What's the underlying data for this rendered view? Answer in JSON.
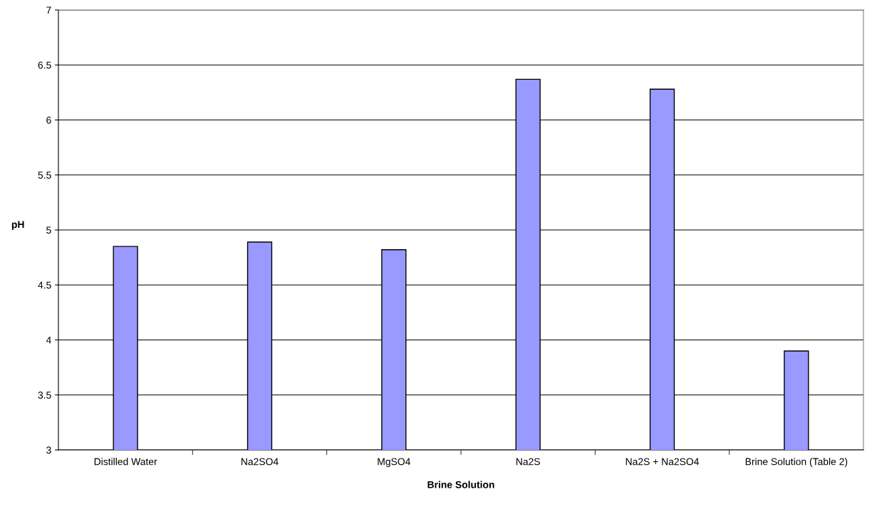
{
  "chart_data": {
    "type": "bar",
    "xlabel": "Brine Solution",
    "ylabel": "pH",
    "categories": [
      "Distilled Water",
      "Na2SO4",
      "MgSO4",
      "Na2S",
      "Na2S + Na2SO4",
      "Brine Solution (Table 2)"
    ],
    "values": [
      4.85,
      4.89,
      4.82,
      6.37,
      6.28,
      3.9
    ],
    "color": "#9999ff",
    "ylim": [
      3,
      7
    ],
    "yticks": [
      3,
      3.5,
      4,
      4.5,
      5,
      5.5,
      6,
      6.5,
      7
    ],
    "grid": "y",
    "legend": false
  }
}
